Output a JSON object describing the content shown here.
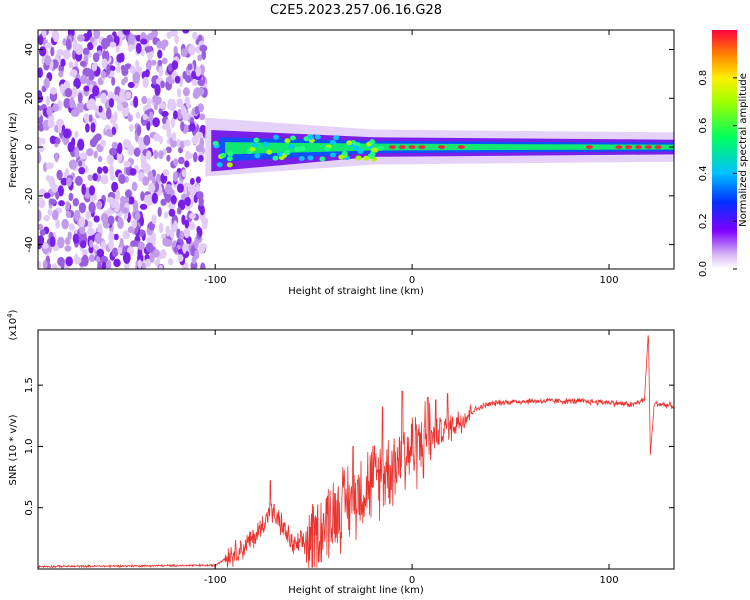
{
  "title": "C2E5.2023.257.06.16.G28",
  "chart_data": [
    {
      "type": "heatmap",
      "xlabel": "Height of straight line (km)",
      "ylabel": "Frequency (Hz)",
      "xlim": [
        -190,
        133
      ],
      "ylim": [
        -50,
        48
      ],
      "xticks": [
        -100,
        0,
        100
      ],
      "yticks": [
        -40,
        -20,
        0,
        20,
        40
      ],
      "colorbar": {
        "label": "Normalized spectral amplitude",
        "range": [
          0.0,
          1.0
        ],
        "ticks": [
          "0.0",
          "0.2",
          "0.4",
          "0.6",
          "0.8"
        ],
        "tick_values": [
          0.0,
          0.2,
          0.4,
          0.6,
          0.8
        ]
      },
      "features": {
        "noise_region_x": [
          -190,
          -105
        ],
        "signal_center_freq_hz": 0,
        "signal_width_hz_start": 12,
        "signal_width_hz_end": 6,
        "strong_peaks_x": [
          -10,
          -5,
          0,
          5,
          15,
          25,
          90,
          105,
          110,
          115,
          120,
          125
        ]
      }
    },
    {
      "type": "line",
      "xlabel": "Height of straight line (km)",
      "ylabel": "SNR (10 * v/v)",
      "scale_label": "(x10⁴)",
      "scale_base": "(x10",
      "scale_exp": "4",
      "scale_close": ")",
      "xlim": [
        -190,
        133
      ],
      "ylim": [
        0,
        1.95
      ],
      "xticks": [
        -100,
        0,
        100
      ],
      "yticks": [
        0.5,
        1.0,
        1.5
      ],
      "ytick_labels": [
        "0.5",
        "1.0",
        "1.5"
      ],
      "color": "#e8332f",
      "series_keypoints": [
        {
          "x": -190,
          "y": 0.02
        },
        {
          "x": -100,
          "y": 0.03
        },
        {
          "x": -92,
          "y": 0.12
        },
        {
          "x": -85,
          "y": 0.18
        },
        {
          "x": -78,
          "y": 0.3
        },
        {
          "x": -72,
          "y": 0.48
        },
        {
          "x": -66,
          "y": 0.35
        },
        {
          "x": -60,
          "y": 0.18
        },
        {
          "x": -50,
          "y": 0.25
        },
        {
          "x": -42,
          "y": 0.42
        },
        {
          "x": -35,
          "y": 0.52
        },
        {
          "x": -28,
          "y": 0.62
        },
        {
          "x": -20,
          "y": 0.72
        },
        {
          "x": -12,
          "y": 0.82
        },
        {
          "x": -5,
          "y": 0.92
        },
        {
          "x": 2,
          "y": 1.0
        },
        {
          "x": 10,
          "y": 1.08
        },
        {
          "x": 18,
          "y": 1.15
        },
        {
          "x": 25,
          "y": 1.22
        },
        {
          "x": 32,
          "y": 1.3
        },
        {
          "x": 38,
          "y": 1.34
        },
        {
          "x": 45,
          "y": 1.36
        },
        {
          "x": 60,
          "y": 1.37
        },
        {
          "x": 80,
          "y": 1.37
        },
        {
          "x": 100,
          "y": 1.36
        },
        {
          "x": 112,
          "y": 1.34
        },
        {
          "x": 118,
          "y": 1.38
        },
        {
          "x": 120,
          "y": 1.95
        },
        {
          "x": 121,
          "y": 0.93
        },
        {
          "x": 123,
          "y": 1.35
        },
        {
          "x": 133,
          "y": 1.33
        }
      ],
      "noise": [
        {
          "x": [
            -95,
            -55
          ],
          "amp": 0.12
        },
        {
          "x": [
            -55,
            10
          ],
          "amp": 0.4
        },
        {
          "x": [
            10,
            30
          ],
          "amp": 0.15
        },
        {
          "x": [
            30,
            133
          ],
          "amp": 0.03
        }
      ],
      "spikes": [
        {
          "x": -72,
          "y": 0.72
        },
        {
          "x": -30,
          "y": 1.0
        },
        {
          "x": -15,
          "y": 1.32
        },
        {
          "x": -5,
          "y": 1.45
        },
        {
          "x": 8,
          "y": 1.4
        },
        {
          "x": 12,
          "y": 1.38
        },
        {
          "x": 18,
          "y": 1.43
        }
      ]
    }
  ]
}
